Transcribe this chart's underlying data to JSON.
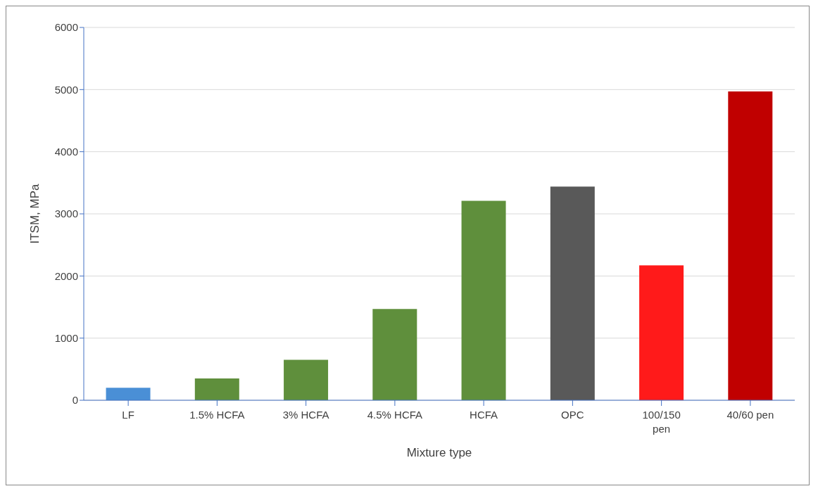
{
  "chart_data": {
    "type": "bar",
    "xlabel": "Mixture type",
    "ylabel": "ITSM, MPa",
    "categories": [
      "LF",
      "1.5% HCFA",
      "3% HCFA",
      "4.5% HCFA",
      "HCFA",
      "OPC",
      "100/150 pen",
      "40/60 pen"
    ],
    "values": [
      200,
      350,
      650,
      1470,
      3210,
      3440,
      2170,
      4970
    ],
    "colors": [
      "#4a8fd6",
      "#5f8f3c",
      "#5f8f3c",
      "#5f8f3c",
      "#5f8f3c",
      "#595959",
      "#ff1a1a",
      "#c00000"
    ],
    "ylim": [
      0,
      6000
    ],
    "yticks": [
      0,
      1000,
      2000,
      3000,
      4000,
      5000,
      6000
    ],
    "grid": "y",
    "legend": false
  }
}
